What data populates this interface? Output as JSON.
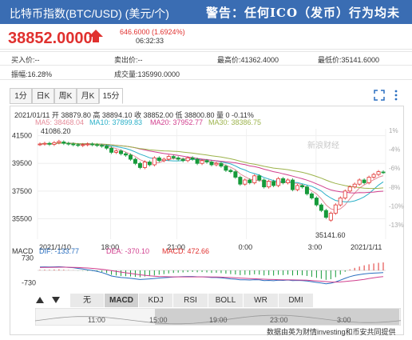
{
  "header": {
    "title": "比特币指数(BTC/USD) (美元/个)",
    "warning": "警告：任何ICO（发币）行为均未"
  },
  "quote": {
    "price": "38852.0000",
    "change": "646.6000 (1.6924%)",
    "time": "06:32:33"
  },
  "stats": {
    "row1": [
      {
        "label": "买入价:--"
      },
      {
        "label": "卖出价:--"
      },
      {
        "label": "最高价:41362.4000"
      },
      {
        "label": "最低价:35141.6000"
      }
    ],
    "row2": [
      {
        "label": "振幅:16.28%"
      },
      {
        "label": "成交量:135990.0000"
      }
    ]
  },
  "tabs": [
    "1分",
    "日K",
    "周K",
    "月K",
    "15分"
  ],
  "active_tab": "15分",
  "chart_info": {
    "ohlc_line": "2021/01/11 开 38879.80 高 38894.10 收 38852.00 低 38800.80 量 0 -0.11%",
    "ma5": "MA5: 38468.04",
    "ma10": "MA10: 37899.83",
    "ma20": "MA20: 37952.77",
    "ma30": "MA30: 38386.75",
    "high_marker": "41086.20",
    "low_marker": "35141.60",
    "watermark": "新浪财经",
    "macd_label": "MACD",
    "dif": "DIF: -133.77",
    "dea": "DEA: -370.10",
    "macd": "MACD: 472.66"
  },
  "indicators": [
    "无",
    "MACD",
    "KDJ",
    "RSI",
    "BOLL",
    "WR",
    "DMI"
  ],
  "active_indicator": "MACD",
  "footer": {
    "credit": "数据由英为财情investing和币安共同提供",
    "nav_times": [
      "11:00",
      "15:00",
      "19:00",
      "23:00",
      "3:00"
    ]
  },
  "colors": {
    "header_bg": "#3a6db3",
    "up": "#e0312f",
    "down": "#169a3a",
    "ma5": "#e58b99",
    "ma10": "#2ab0c8",
    "ma20": "#d13f8e",
    "ma30": "#9cb34b"
  },
  "chart_data": {
    "type": "candlestick",
    "x_ticks": [
      "2021/1/10",
      "18:00",
      "21:00",
      "0:00",
      "3:00",
      "2021/1/11"
    ],
    "y_ticks": [
      41500,
      39500,
      37500,
      35500
    ],
    "pct_ticks": [
      "1%",
      "-4%",
      "-6%",
      "-8%",
      "-10%",
      "-13%"
    ],
    "macd_ticks": [
      730,
      -730
    ],
    "close": [
      40900,
      40950,
      40880,
      41000,
      41086,
      40950,
      40900,
      40850,
      40800,
      40850,
      40900,
      40850,
      40800,
      40750,
      40600,
      40300,
      40400,
      40200,
      40100,
      39800,
      39500,
      39200,
      39600,
      39400,
      39900,
      39700,
      39800,
      40000,
      39900,
      39800,
      39700,
      39900,
      39800,
      39500,
      39700,
      39600,
      39400,
      39500,
      39300,
      39000,
      38900,
      38500,
      38000,
      38300,
      38100,
      38600,
      38300,
      37800,
      38200,
      37900,
      38400,
      38100,
      38300,
      37600,
      37900,
      37800,
      37300,
      37000,
      36500,
      36100,
      35600,
      35900,
      36500,
      37000,
      37500,
      37800,
      38000,
      38300,
      38100,
      38500,
      38700,
      38900,
      38852
    ],
    "open": [
      40880,
      40900,
      40950,
      40880,
      41000,
      41050,
      40950,
      40900,
      40850,
      40800,
      40850,
      40900,
      40850,
      40800,
      40750,
      40600,
      40300,
      40400,
      40200,
      40100,
      39800,
      39500,
      39200,
      39600,
      39400,
      39900,
      39700,
      39800,
      40000,
      39900,
      39800,
      39700,
      39900,
      39800,
      39500,
      39700,
      39600,
      39400,
      39500,
      39300,
      39000,
      38900,
      38500,
      38000,
      38300,
      38100,
      38600,
      38300,
      37800,
      38200,
      37900,
      38400,
      38100,
      38300,
      37600,
      37900,
      37800,
      37300,
      37000,
      36500,
      36100,
      35400,
      35900,
      36500,
      37000,
      37500,
      37800,
      38000,
      38300,
      38100,
      38500,
      38700,
      38879.8
    ],
    "macd_hist": [
      30,
      40,
      35,
      50,
      60,
      40,
      20,
      10,
      -10,
      -20,
      -30,
      -40,
      -60,
      -90,
      -150,
      -260,
      -300,
      -330,
      -340,
      -360,
      -380,
      -400,
      -360,
      -330,
      -300,
      -250,
      -220,
      -180,
      -150,
      -130,
      -120,
      -100,
      -90,
      -110,
      -100,
      -120,
      -150,
      -140,
      -160,
      -190,
      -220,
      -240,
      -280,
      -260,
      -270,
      -230,
      -250,
      -300,
      -280,
      -310,
      -260,
      -280,
      -250,
      -300,
      -280,
      -290,
      -330,
      -380,
      -440,
      -500,
      -560,
      -520,
      -400,
      -250,
      -80,
      60,
      150,
      230,
      300,
      360,
      410,
      450,
      472.66
    ],
    "dif_line": [
      200,
      210,
      200,
      210,
      220,
      200,
      180,
      160,
      120,
      80,
      40,
      0,
      -60,
      -130,
      -220,
      -330,
      -380,
      -420,
      -440,
      -470,
      -500,
      -540,
      -520,
      -500,
      -480,
      -450,
      -430,
      -410,
      -390,
      -380,
      -370,
      -360,
      -360,
      -380,
      -380,
      -400,
      -420,
      -420,
      -440,
      -470,
      -500,
      -520,
      -560,
      -560,
      -570,
      -550,
      -560,
      -600,
      -590,
      -610,
      -580,
      -590,
      -570,
      -600,
      -590,
      -600,
      -630,
      -670,
      -710,
      -750,
      -790,
      -760,
      -680,
      -580,
      -470,
      -370,
      -300,
      -250,
      -210,
      -180,
      -160,
      -145,
      -133.77
    ],
    "dea_line": [
      170,
      175,
      180,
      185,
      190,
      190,
      185,
      180,
      170,
      155,
      140,
      120,
      95,
      65,
      30,
      -15,
      -60,
      -100,
      -140,
      -180,
      -220,
      -260,
      -290,
      -320,
      -340,
      -360,
      -370,
      -380,
      -385,
      -385,
      -385,
      -385,
      -383,
      -382,
      -383,
      -385,
      -390,
      -395,
      -400,
      -410,
      -420,
      -435,
      -455,
      -470,
      -485,
      -495,
      -505,
      -520,
      -530,
      -540,
      -550,
      -555,
      -560,
      -565,
      -570,
      -575,
      -585,
      -600,
      -620,
      -640,
      -665,
      -685,
      -690,
      -680,
      -660,
      -630,
      -600,
      -570,
      -530,
      -480,
      -440,
      -400,
      -370.1
    ]
  }
}
